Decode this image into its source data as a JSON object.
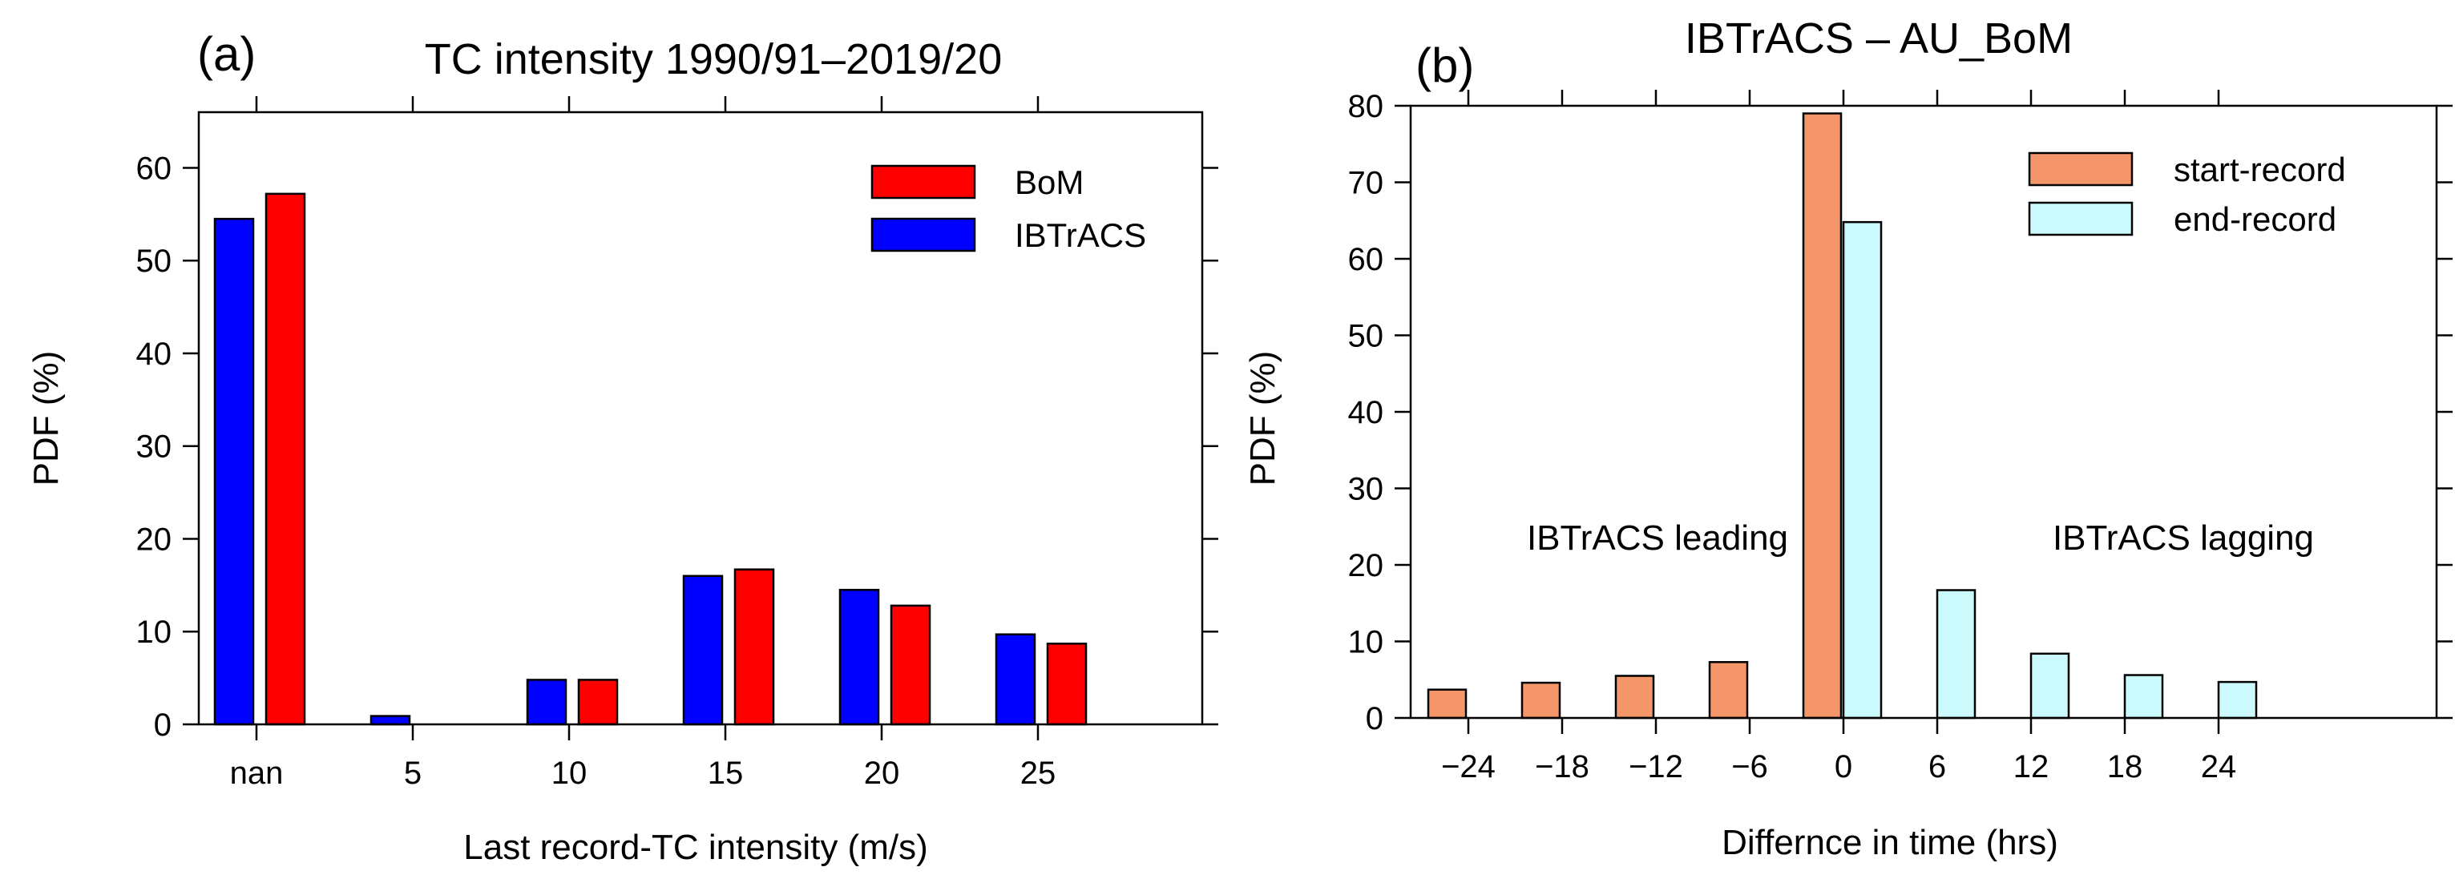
{
  "chart_data": [
    {
      "type": "bar",
      "panel_label": "(a)",
      "title": "TC intensity 1990/91–2019/20",
      "xlabel": "Last record-TC intensity (m/s)",
      "ylabel": "PDF  (%)",
      "ylim": [
        0,
        66
      ],
      "yticks": [
        0,
        10,
        20,
        30,
        40,
        50,
        60
      ],
      "categories": [
        "nan",
        "5",
        "10",
        "15",
        "20",
        "25"
      ],
      "series": [
        {
          "name": "IBTrACS",
          "color": "#0000ff",
          "values": [
            54.5,
            0.9,
            4.8,
            16.0,
            14.5,
            9.7
          ]
        },
        {
          "name": "BoM",
          "color": "#ff0000",
          "values": [
            57.2,
            0.0,
            4.8,
            16.7,
            12.8,
            8.7
          ]
        }
      ],
      "legend": {
        "position": "top-right",
        "order": [
          "BoM",
          "IBTrACS"
        ]
      }
    },
    {
      "type": "bar",
      "panel_label": "(b)",
      "title": "IBTrACS – AU_BoM",
      "xlabel": "Differnce in time (hrs)",
      "ylabel": "PDF  (%)",
      "ylim": [
        0,
        80
      ],
      "yticks": [
        0,
        10,
        20,
        30,
        40,
        50,
        60,
        70,
        80
      ],
      "categories": [
        "−24",
        "−18",
        "−12",
        "−6",
        "0",
        "6",
        "12",
        "18",
        "24"
      ],
      "series": [
        {
          "name": "start-record",
          "color": "#f5956a",
          "values": [
            3.7,
            4.6,
            5.5,
            7.3,
            79.0,
            0,
            0,
            0,
            0
          ]
        },
        {
          "name": "end-record",
          "color": "#ccf9fb",
          "values": [
            0,
            0,
            0,
            0,
            64.8,
            16.7,
            8.4,
            5.6,
            4.7
          ]
        }
      ],
      "annotations": [
        "IBTrACS leading",
        "IBTrACS lagging"
      ],
      "legend": {
        "position": "top-right",
        "order": [
          "start-record",
          "end-record"
        ]
      }
    }
  ]
}
